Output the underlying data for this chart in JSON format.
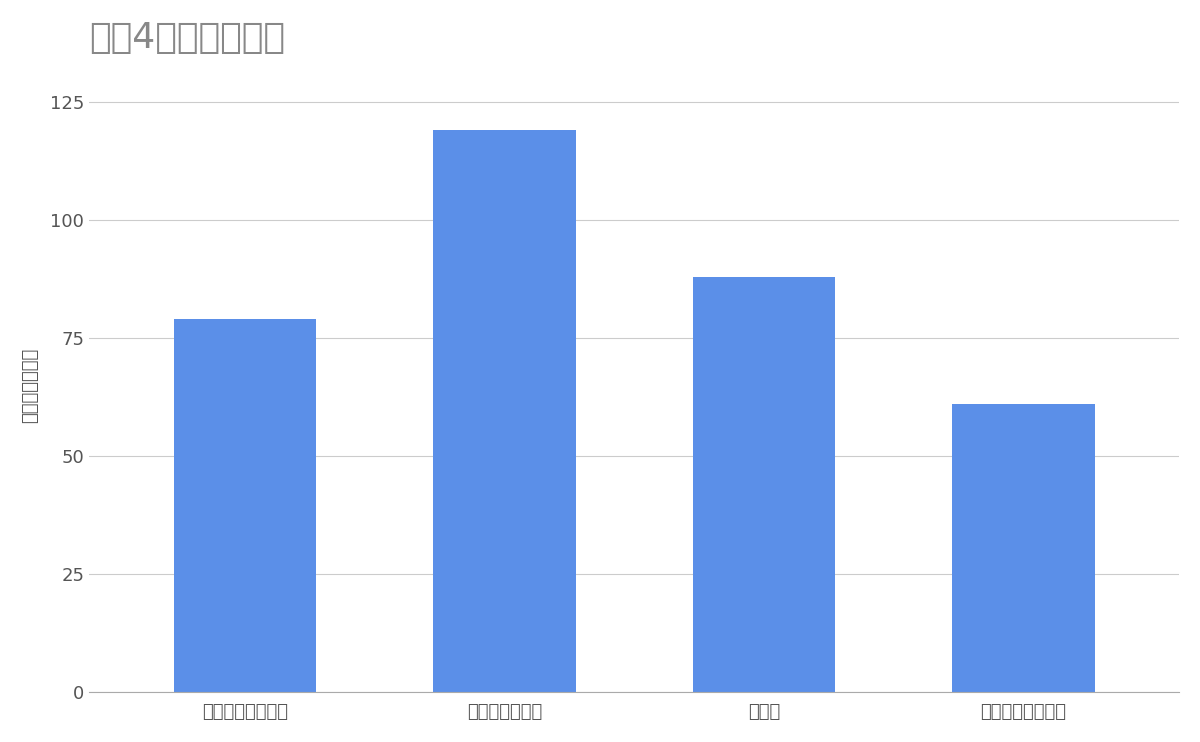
{
  "title": "競合4社の総売上高",
  "categories": [
    "サイカパーキング",
    "日本パーキング",
    "パラカ",
    "駐車場綜合研究所"
  ],
  "values": [
    79,
    119,
    88,
    61
  ],
  "bar_color": "#5B8FE8",
  "ylabel": "売上高（億円）",
  "ylim": [
    0,
    130
  ],
  "yticks": [
    0,
    25,
    50,
    75,
    100,
    125
  ],
  "background_color": "#ffffff",
  "title_fontsize": 26,
  "axis_fontsize": 13,
  "tick_fontsize": 13,
  "title_color": "#888888",
  "tick_color": "#555555",
  "grid_color": "#cccccc"
}
